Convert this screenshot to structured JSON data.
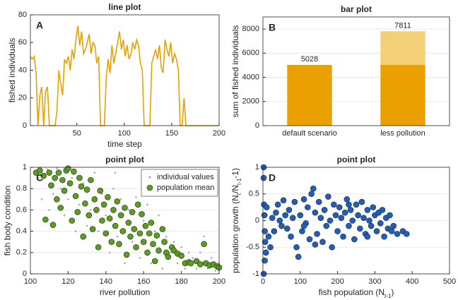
{
  "chart_data": [
    {
      "type": "line",
      "title": "line plot",
      "label": "A",
      "xlabel": "time step",
      "ylabel": "fished individuals",
      "color": "#e9a000",
      "xlim": [
        1,
        200
      ],
      "xticks": [
        50,
        100,
        150,
        200
      ],
      "ylim": [
        0,
        80
      ],
      "yticks": [
        0,
        20,
        40,
        60,
        80
      ],
      "grid": false,
      "x": [
        1,
        3,
        5,
        7,
        9,
        11,
        13,
        15,
        17,
        19,
        21,
        23,
        25,
        27,
        29,
        31,
        33,
        35,
        37,
        39,
        41,
        43,
        45,
        47,
        49,
        51,
        53,
        55,
        57,
        59,
        61,
        63,
        65,
        67,
        69,
        71,
        73,
        75,
        77,
        79,
        81,
        83,
        85,
        87,
        89,
        91,
        93,
        95,
        97,
        99,
        101,
        103,
        105,
        107,
        109,
        111,
        113,
        115,
        117,
        119,
        121,
        123,
        125,
        127,
        129,
        131,
        133,
        135,
        137,
        139,
        141,
        143,
        145,
        147,
        149,
        151,
        153,
        155,
        157,
        159,
        161,
        163,
        165,
        167,
        169,
        171,
        173,
        175,
        177,
        179,
        181,
        183,
        185,
        187,
        189,
        191,
        193,
        195,
        197,
        199
      ],
      "values": [
        50,
        48,
        50,
        38,
        0,
        22,
        28,
        0,
        25,
        28,
        0,
        0,
        0,
        0,
        10,
        40,
        30,
        22,
        48,
        45,
        50,
        40,
        55,
        48,
        62,
        72,
        58,
        68,
        52,
        55,
        60,
        66,
        52,
        60,
        58,
        45,
        50,
        0,
        0,
        0,
        35,
        48,
        38,
        58,
        45,
        52,
        60,
        68,
        55,
        62,
        50,
        58,
        48,
        52,
        60,
        55,
        62,
        58,
        45,
        40,
        0,
        0,
        0,
        0,
        45,
        50,
        55,
        48,
        58,
        42,
        38,
        62,
        55,
        50,
        60,
        45,
        52,
        48,
        40,
        0,
        0,
        20,
        0,
        0,
        0,
        0,
        0,
        0,
        0,
        0,
        0,
        0,
        0,
        0,
        0,
        0,
        0,
        0,
        0,
        0
      ]
    },
    {
      "type": "bar",
      "title": "bar plot",
      "label": "B",
      "ylabel": "sum of fished individuals",
      "categories": [
        "default scenario",
        "less pollution"
      ],
      "series": [
        {
          "color": "#e9a000",
          "values": [
            5028,
            5028
          ]
        },
        {
          "color": "#f3cf78",
          "values": [
            null,
            2783
          ]
        }
      ],
      "totals": [
        5028,
        7811
      ],
      "ylim": [
        0,
        9000
      ],
      "yticks": [
        0,
        2000,
        4000,
        6000,
        8000
      ],
      "grid": true
    },
    {
      "type": "scatter",
      "title": "point plot",
      "label": "C",
      "xlabel": "river pollution",
      "ylabel": "fish body condition",
      "xlim": [
        100,
        200
      ],
      "xticks": [
        100,
        120,
        140,
        160,
        180,
        200
      ],
      "ylim": [
        0,
        1
      ],
      "yticks": [
        0,
        0.2,
        0.4,
        0.6,
        0.8,
        1
      ],
      "grid": true,
      "legend": "upper right",
      "series": [
        {
          "name": "individual values",
          "color": "#a8a8a8",
          "marker": "point",
          "x": [
            104,
            106,
            109,
            110,
            112,
            114,
            116,
            118,
            120,
            122,
            124,
            126,
            128,
            130,
            132,
            134,
            136,
            138,
            140,
            142,
            144,
            146,
            148,
            150,
            152,
            154,
            156,
            158,
            160,
            162,
            164,
            166,
            168,
            170,
            172,
            174,
            176,
            178,
            180,
            182,
            184,
            186,
            188,
            190,
            192,
            194,
            196,
            198,
            200,
            145
          ],
          "values": [
            0.9,
            0.7,
            0.98,
            0.6,
            0.75,
            0.99,
            0.8,
            0.55,
            0.7,
            0.9,
            0.4,
            0.65,
            0.85,
            0.45,
            0.6,
            0.95,
            0.4,
            0.75,
            0.55,
            0.2,
            0.8,
            0.35,
            0.7,
            0.1,
            0.6,
            0.3,
            0.72,
            0.15,
            0.5,
            0.65,
            0.1,
            0.4,
            0.55,
            0.05,
            0.35,
            0.2,
            0.3,
            0.1,
            0.25,
            0.05,
            0.2,
            0.15,
            0.05,
            0.2,
            0.35,
            0.05,
            0.15,
            0.03,
            0.1,
            0.95
          ]
        },
        {
          "name": "population mean",
          "color": "#5b9e1c",
          "marker": "circle",
          "x": [
            103,
            105,
            107,
            108,
            110,
            111,
            112,
            113,
            114,
            115,
            116,
            117,
            118,
            119,
            120,
            121,
            122,
            123,
            124,
            125,
            126,
            127,
            128,
            129,
            130,
            131,
            132,
            133,
            134,
            135,
            136,
            137,
            138,
            139,
            140,
            141,
            142,
            143,
            144,
            145,
            146,
            147,
            148,
            149,
            150,
            151,
            152,
            153,
            154,
            155,
            156,
            157,
            158,
            159,
            160,
            161,
            162,
            163,
            164,
            165,
            166,
            167,
            168,
            170,
            171,
            172,
            173,
            175,
            176,
            178,
            180,
            182,
            184,
            185,
            188,
            190,
            192,
            193,
            195,
            197,
            199,
            200
          ],
          "values": [
            0.95,
            0.97,
            0.92,
            0.51,
            0.95,
            0.83,
            0.46,
            0.9,
            0.7,
            0.95,
            0.62,
            0.88,
            0.78,
            0.97,
            0.99,
            0.85,
            0.5,
            0.96,
            0.73,
            0.58,
            0.9,
            0.82,
            0.35,
            0.66,
            0.79,
            0.55,
            0.88,
            0.42,
            0.7,
            0.6,
            0.25,
            0.78,
            0.5,
            0.65,
            0.38,
            0.72,
            0.52,
            0.3,
            0.6,
            0.45,
            0.68,
            0.28,
            0.55,
            0.4,
            0.62,
            0.18,
            0.48,
            0.35,
            0.58,
            0.42,
            0.25,
            0.65,
            0.38,
            0.56,
            0.3,
            0.45,
            0.2,
            0.38,
            0.48,
            0.28,
            0.12,
            0.36,
            0.22,
            0.42,
            0.3,
            0.2,
            0.16,
            0.25,
            0.22,
            0.19,
            0.17,
            0.1,
            0.11,
            0.1,
            0.12,
            0.09,
            0.28,
            0.1,
            0.08,
            0.09,
            0.07,
            0.06
          ]
        }
      ]
    },
    {
      "type": "scatter",
      "title": "point plot",
      "label": "D",
      "xlabel": [
        "fish population (N",
        "t-1",
        ")"
      ],
      "ylabel": [
        "population growth (N",
        "t",
        "/N",
        "t-1",
        "-1)"
      ],
      "xlim": [
        0,
        500
      ],
      "xticks": [
        0,
        100,
        200,
        300,
        400,
        500
      ],
      "ylim": [
        -1,
        1
      ],
      "yticks": [
        -1,
        -0.5,
        0,
        0.5,
        1
      ],
      "grid": true,
      "series": [
        {
          "color": "#1f5fb8",
          "marker": "circle",
          "x": [
            2,
            2,
            3,
            4,
            5,
            6,
            8,
            2,
            10,
            5,
            15,
            20,
            25,
            30,
            35,
            40,
            45,
            50,
            55,
            60,
            65,
            70,
            75,
            80,
            85,
            90,
            95,
            100,
            105,
            110,
            115,
            120,
            125,
            130,
            135,
            140,
            145,
            150,
            155,
            160,
            165,
            170,
            175,
            180,
            185,
            190,
            195,
            200,
            205,
            210,
            215,
            220,
            225,
            230,
            235,
            240,
            245,
            250,
            255,
            260,
            265,
            270,
            275,
            280,
            285,
            290,
            295,
            300,
            305,
            310,
            315,
            320,
            325,
            330,
            335,
            340,
            345,
            350,
            360,
            375,
            385,
            140,
            110,
            230,
            280
          ],
          "values": [
            1,
            0.8,
            0.3,
            0.1,
            -0.2,
            -0.4,
            -0.6,
            -1,
            0.25,
            -0.75,
            -0.3,
            -0.5,
            0.05,
            -0.2,
            0.15,
            0.3,
            0,
            -0.1,
            0.38,
            0.1,
            -0.15,
            0.2,
            -0.3,
            0.05,
            0.35,
            -0.5,
            -0.68,
            0.1,
            -0.2,
            0.4,
            -0.05,
            0.25,
            -0.35,
            0.5,
            0.6,
            0.15,
            -0.25,
            0.35,
            0.05,
            -0.4,
            0.2,
            -0.1,
            0.45,
            0,
            -0.5,
            0.3,
            0.1,
            -0.2,
            0.25,
            0.05,
            -0.3,
            0.15,
            0.4,
            -0.1,
            0.2,
            0,
            -0.35,
            0.3,
            0.1,
            -0.15,
            0.35,
            0.05,
            -0.25,
            0.2,
            0,
            -0.1,
            0.25,
            0.1,
            -0.2,
            0.15,
            -0.05,
            0.2,
            -0.3,
            0.05,
            -0.15,
            0.1,
            -0.2,
            -0.1,
            -0.25,
            -0.2,
            -0.25,
            -0.45,
            -0.1,
            0.3,
            -0.3
          ]
        }
      ]
    }
  ]
}
